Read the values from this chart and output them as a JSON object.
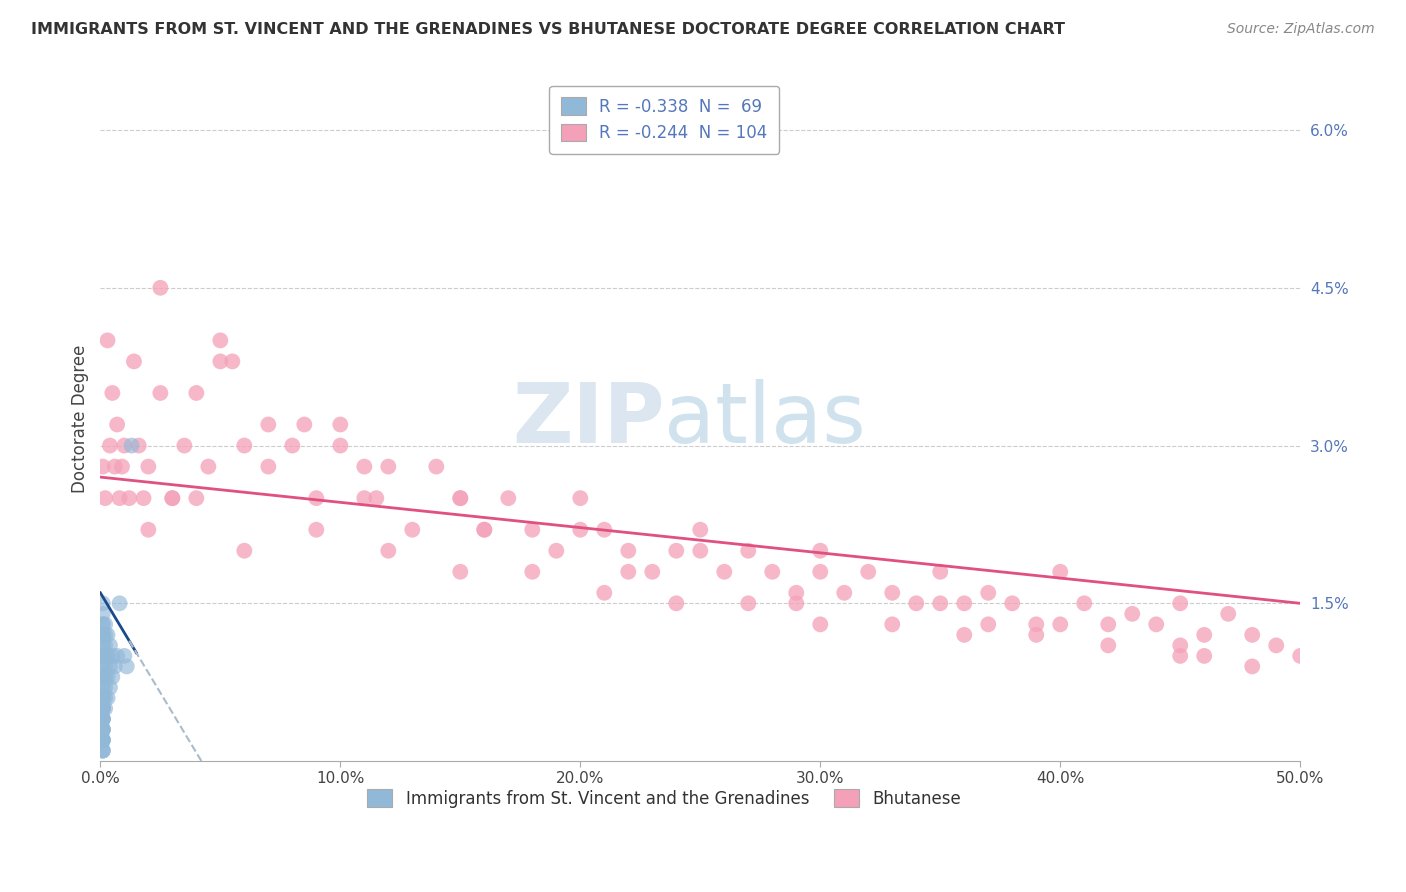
{
  "title": "IMMIGRANTS FROM ST. VINCENT AND THE GRENADINES VS BHUTANESE DOCTORATE DEGREE CORRELATION CHART",
  "source": "Source: ZipAtlas.com",
  "ylabel": "Doctorate Degree",
  "xlim": [
    0.0,
    0.5
  ],
  "ylim": [
    0.0,
    0.065
  ],
  "xticks": [
    0.0,
    0.1,
    0.2,
    0.3,
    0.4,
    0.5
  ],
  "xtick_labels": [
    "0.0%",
    "10.0%",
    "20.0%",
    "30.0%",
    "40.0%",
    "50.0%"
  ],
  "yticks": [
    0.015,
    0.03,
    0.045,
    0.06
  ],
  "ytick_labels": [
    "1.5%",
    "3.0%",
    "4.5%",
    "6.0%"
  ],
  "legend_r1": "R = -0.338",
  "legend_n1": "N =  69",
  "legend_r2": "R = -0.244",
  "legend_n2": "N = 104",
  "color_blue": "#92b8d8",
  "color_pink": "#f4a0b8",
  "trend_blue": "#1a4a8a",
  "trend_blue_dashed": "#aabbcc",
  "trend_pink": "#e05080",
  "background_color": "#ffffff",
  "grid_color": "#cccccc",
  "watermark_color": "#c8d8e8",
  "tick_color_right": "#5577bb",
  "tick_color_bottom": "#444444",
  "pink_intercept": 0.027,
  "pink_slope": -0.024,
  "blue_intercept": 0.016,
  "blue_slope": -0.38,
  "blue_x": [
    0.001,
    0.001,
    0.001,
    0.001,
    0.001,
    0.001,
    0.001,
    0.001,
    0.001,
    0.001,
    0.001,
    0.001,
    0.001,
    0.001,
    0.001,
    0.001,
    0.001,
    0.001,
    0.001,
    0.001,
    0.001,
    0.001,
    0.001,
    0.001,
    0.001,
    0.001,
    0.001,
    0.001,
    0.001,
    0.001,
    0.001,
    0.001,
    0.001,
    0.001,
    0.001,
    0.001,
    0.001,
    0.001,
    0.001,
    0.001,
    0.001,
    0.001,
    0.001,
    0.001,
    0.001,
    0.002,
    0.002,
    0.002,
    0.002,
    0.002,
    0.002,
    0.002,
    0.002,
    0.002,
    0.003,
    0.003,
    0.003,
    0.003,
    0.004,
    0.004,
    0.004,
    0.005,
    0.005,
    0.006,
    0.007,
    0.008,
    0.01,
    0.011,
    0.013
  ],
  "blue_y": [
    0.001,
    0.001,
    0.001,
    0.002,
    0.002,
    0.002,
    0.002,
    0.002,
    0.003,
    0.003,
    0.003,
    0.003,
    0.003,
    0.004,
    0.004,
    0.004,
    0.004,
    0.004,
    0.005,
    0.005,
    0.005,
    0.005,
    0.005,
    0.005,
    0.006,
    0.006,
    0.006,
    0.007,
    0.007,
    0.008,
    0.008,
    0.008,
    0.009,
    0.009,
    0.01,
    0.01,
    0.011,
    0.011,
    0.012,
    0.012,
    0.012,
    0.013,
    0.013,
    0.014,
    0.015,
    0.005,
    0.006,
    0.007,
    0.008,
    0.009,
    0.01,
    0.011,
    0.012,
    0.013,
    0.006,
    0.008,
    0.01,
    0.012,
    0.007,
    0.009,
    0.011,
    0.008,
    0.01,
    0.009,
    0.01,
    0.015,
    0.01,
    0.009,
    0.03
  ],
  "pink_x": [
    0.001,
    0.002,
    0.003,
    0.004,
    0.005,
    0.006,
    0.007,
    0.008,
    0.009,
    0.01,
    0.012,
    0.014,
    0.016,
    0.018,
    0.02,
    0.025,
    0.03,
    0.035,
    0.04,
    0.045,
    0.05,
    0.06,
    0.07,
    0.08,
    0.09,
    0.1,
    0.11,
    0.12,
    0.13,
    0.14,
    0.15,
    0.16,
    0.17,
    0.18,
    0.19,
    0.2,
    0.21,
    0.22,
    0.23,
    0.24,
    0.25,
    0.26,
    0.27,
    0.28,
    0.29,
    0.3,
    0.31,
    0.32,
    0.33,
    0.34,
    0.35,
    0.36,
    0.37,
    0.38,
    0.39,
    0.4,
    0.41,
    0.42,
    0.43,
    0.44,
    0.45,
    0.46,
    0.47,
    0.48,
    0.49,
    0.5,
    0.03,
    0.06,
    0.09,
    0.12,
    0.15,
    0.18,
    0.21,
    0.24,
    0.27,
    0.3,
    0.33,
    0.36,
    0.39,
    0.42,
    0.45,
    0.48,
    0.05,
    0.1,
    0.15,
    0.2,
    0.25,
    0.3,
    0.35,
    0.4,
    0.45,
    0.02,
    0.04,
    0.07,
    0.11,
    0.16,
    0.22,
    0.29,
    0.37,
    0.46,
    0.025,
    0.055,
    0.085,
    0.115
  ],
  "pink_y": [
    0.028,
    0.025,
    0.04,
    0.03,
    0.035,
    0.028,
    0.032,
    0.025,
    0.028,
    0.03,
    0.025,
    0.038,
    0.03,
    0.025,
    0.028,
    0.035,
    0.025,
    0.03,
    0.035,
    0.028,
    0.04,
    0.03,
    0.028,
    0.03,
    0.025,
    0.03,
    0.025,
    0.028,
    0.022,
    0.028,
    0.025,
    0.022,
    0.025,
    0.022,
    0.02,
    0.025,
    0.022,
    0.02,
    0.018,
    0.02,
    0.022,
    0.018,
    0.02,
    0.018,
    0.016,
    0.02,
    0.016,
    0.018,
    0.016,
    0.015,
    0.018,
    0.015,
    0.016,
    0.015,
    0.013,
    0.018,
    0.015,
    0.013,
    0.014,
    0.013,
    0.015,
    0.012,
    0.014,
    0.012,
    0.011,
    0.01,
    0.025,
    0.02,
    0.022,
    0.02,
    0.018,
    0.018,
    0.016,
    0.015,
    0.015,
    0.013,
    0.013,
    0.012,
    0.012,
    0.011,
    0.01,
    0.009,
    0.038,
    0.032,
    0.025,
    0.022,
    0.02,
    0.018,
    0.015,
    0.013,
    0.011,
    0.022,
    0.025,
    0.032,
    0.028,
    0.022,
    0.018,
    0.015,
    0.013,
    0.01,
    0.045,
    0.038,
    0.032,
    0.025
  ]
}
